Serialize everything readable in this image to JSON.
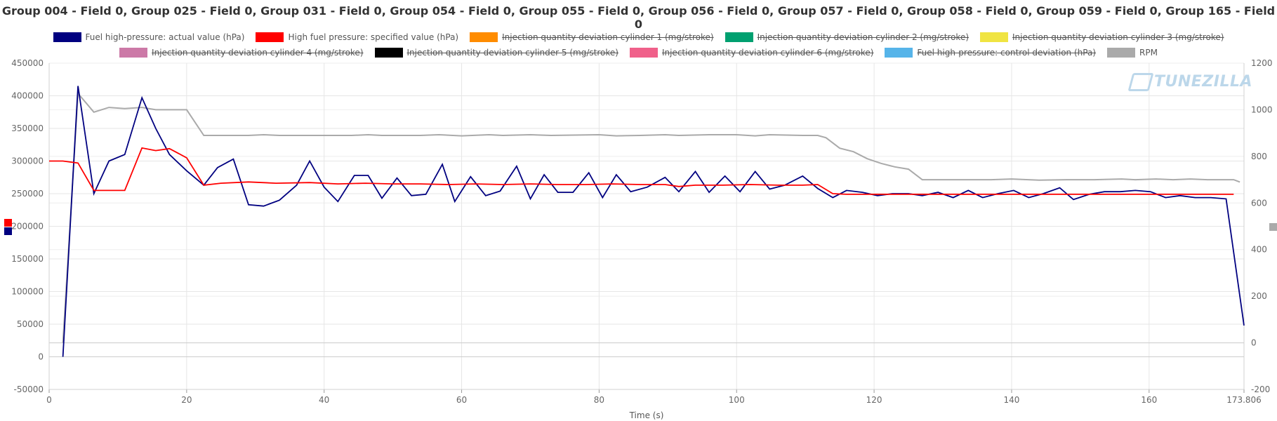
{
  "chart_data": {
    "type": "line",
    "title": "Group 004 - Field 0, Group 025 - Field 0, Group 031 - Field 0, Group 054 - Field 0, Group 055 - Field 0, Group 056 - Field 0, Group 057 - Field 0, Group 058 - Field 0, Group 059 - Field 0, Group 165 - Field 0",
    "xlabel": "Time (s)",
    "xlim": [
      0,
      173.806
    ],
    "x_ticks": [
      "0",
      "20",
      "40",
      "60",
      "80",
      "100",
      "120",
      "140",
      "160",
      "173.806"
    ],
    "y_left_lim": [
      -50000,
      450000
    ],
    "y_left_ticks": [
      "450000",
      "400000",
      "350000",
      "300000",
      "250000",
      "200000",
      "150000",
      "100000",
      "50000",
      "0",
      "-50000"
    ],
    "y_right_lim": [
      -200,
      1200
    ],
    "y_right_ticks": [
      "1200",
      "1000",
      "800",
      "600",
      "400",
      "200",
      "0",
      "-200"
    ],
    "grid": true,
    "legend_position": "top",
    "series": [
      {
        "name": "Fuel high-pressure: actual value (hPa)",
        "color": "#000080",
        "visible": true,
        "axis": "left",
        "points": [
          [
            2,
            0
          ],
          [
            4.2,
            415000
          ],
          [
            6.5,
            250000
          ],
          [
            8.7,
            300000
          ],
          [
            11,
            310000
          ],
          [
            13.5,
            397000
          ],
          [
            15.5,
            350000
          ],
          [
            17.5,
            310000
          ],
          [
            20,
            285000
          ],
          [
            22.5,
            263000
          ],
          [
            24.5,
            290000
          ],
          [
            26.8,
            303000
          ],
          [
            29,
            233000
          ],
          [
            31.2,
            231000
          ],
          [
            33.5,
            240000
          ],
          [
            36,
            263000
          ],
          [
            37.9,
            300000
          ],
          [
            40,
            260000
          ],
          [
            42,
            238000
          ],
          [
            44.4,
            278000
          ],
          [
            46.4,
            278000
          ],
          [
            48.4,
            243000
          ],
          [
            50.6,
            274000
          ],
          [
            52.7,
            247000
          ],
          [
            54.8,
            249000
          ],
          [
            57.2,
            295000
          ],
          [
            59,
            238000
          ],
          [
            61.3,
            276000
          ],
          [
            63.5,
            247000
          ],
          [
            65.6,
            254000
          ],
          [
            68,
            292000
          ],
          [
            70,
            242000
          ],
          [
            72,
            279000
          ],
          [
            74,
            252000
          ],
          [
            76.2,
            252000
          ],
          [
            78.5,
            282000
          ],
          [
            80.5,
            244000
          ],
          [
            82.5,
            279000
          ],
          [
            84.6,
            253000
          ],
          [
            87,
            260000
          ],
          [
            89.6,
            275000
          ],
          [
            91.6,
            253000
          ],
          [
            94,
            284000
          ],
          [
            96,
            252000
          ],
          [
            98.3,
            277000
          ],
          [
            100.5,
            253000
          ],
          [
            102.7,
            284000
          ],
          [
            104.8,
            257000
          ],
          [
            107,
            263000
          ],
          [
            109.6,
            277000
          ],
          [
            111.8,
            258000
          ],
          [
            114,
            244000
          ],
          [
            116,
            255000
          ],
          [
            118.3,
            252000
          ],
          [
            120.5,
            247000
          ],
          [
            122.7,
            250000
          ],
          [
            125,
            250000
          ],
          [
            127,
            247000
          ],
          [
            129.3,
            252000
          ],
          [
            131.5,
            244000
          ],
          [
            133.7,
            255000
          ],
          [
            135.8,
            244000
          ],
          [
            138,
            250000
          ],
          [
            140.3,
            255000
          ],
          [
            142.5,
            244000
          ],
          [
            144.6,
            250000
          ],
          [
            147,
            259000
          ],
          [
            149,
            241000
          ],
          [
            151.3,
            249000
          ],
          [
            153.5,
            253000
          ],
          [
            155.8,
            253000
          ],
          [
            158,
            255000
          ],
          [
            160.2,
            253000
          ],
          [
            162.4,
            244000
          ],
          [
            164.5,
            247000
          ],
          [
            166.7,
            244000
          ],
          [
            169,
            244000
          ],
          [
            171.2,
            242000
          ],
          [
            173.806,
            48000
          ]
        ]
      },
      {
        "name": "High fuel pressure: specified value (hPa)",
        "color": "#ff0000",
        "visible": true,
        "axis": "left",
        "points": [
          [
            0,
            300000
          ],
          [
            2,
            300000
          ],
          [
            4.2,
            297000
          ],
          [
            6.5,
            255000
          ],
          [
            8.7,
            255000
          ],
          [
            11,
            255000
          ],
          [
            13.5,
            320000
          ],
          [
            15.5,
            316000
          ],
          [
            17.5,
            319000
          ],
          [
            20,
            305000
          ],
          [
            22.5,
            263000
          ],
          [
            25,
            266000
          ],
          [
            29,
            268000
          ],
          [
            33,
            266000
          ],
          [
            37.9,
            267000
          ],
          [
            42,
            265000
          ],
          [
            46,
            266000
          ],
          [
            50,
            265000
          ],
          [
            54,
            265000
          ],
          [
            58,
            264000
          ],
          [
            62,
            265000
          ],
          [
            66,
            264000
          ],
          [
            70,
            265000
          ],
          [
            74,
            264000
          ],
          [
            78,
            264000
          ],
          [
            82,
            265000
          ],
          [
            86,
            264000
          ],
          [
            89.6,
            264000
          ],
          [
            91.6,
            261000
          ],
          [
            94,
            263000
          ],
          [
            98,
            263000
          ],
          [
            102,
            264000
          ],
          [
            106,
            263000
          ],
          [
            109.6,
            263000
          ],
          [
            111.8,
            264000
          ],
          [
            114,
            250000
          ],
          [
            116,
            249000
          ],
          [
            120,
            249000
          ],
          [
            125,
            249000
          ],
          [
            130,
            249000
          ],
          [
            135,
            249000
          ],
          [
            140,
            249000
          ],
          [
            145,
            249000
          ],
          [
            150,
            249000
          ],
          [
            155,
            249000
          ],
          [
            160,
            249000
          ],
          [
            165,
            249000
          ],
          [
            170,
            249000
          ],
          [
            172.3,
            249000
          ]
        ]
      },
      {
        "name": "Injection quantity deviation cylinder 1 (mg/stroke)",
        "color": "#ff8c00",
        "visible": false,
        "axis": "left",
        "points": []
      },
      {
        "name": "Injection quantity deviation cylinder 2 (mg/stroke)",
        "color": "#00a070",
        "visible": false,
        "axis": "left",
        "points": []
      },
      {
        "name": "Injection quantity deviation cylinder 3 (mg/stroke)",
        "color": "#f0e442",
        "visible": false,
        "axis": "left",
        "points": []
      },
      {
        "name": "Injection quantity deviation cylinder 4 (mg/stroke)",
        "color": "#cc79a7",
        "visible": false,
        "axis": "left",
        "points": []
      },
      {
        "name": "Injection quantity deviation cylinder 5 (mg/stroke)",
        "color": "#000000",
        "visible": false,
        "axis": "left",
        "points": []
      },
      {
        "name": "Injection quantity deviation cylinder 6 (mg/stroke)",
        "color": "#f0608a",
        "visible": false,
        "axis": "left",
        "points": []
      },
      {
        "name": "Fuel high-pressure: control deviation (hPa)",
        "color": "#56b4e9",
        "visible": false,
        "axis": "left",
        "points": []
      },
      {
        "name": "RPM",
        "color": "#aaaaaa",
        "visible": true,
        "axis": "right",
        "points": [
          [
            2,
            0
          ],
          [
            4.2,
            1070
          ],
          [
            6.5,
            990
          ],
          [
            8.7,
            1010
          ],
          [
            11,
            1005
          ],
          [
            13.5,
            1010
          ],
          [
            15.5,
            1000
          ],
          [
            17.5,
            1000
          ],
          [
            20,
            1000
          ],
          [
            22.5,
            890
          ],
          [
            25,
            890
          ],
          [
            29,
            890
          ],
          [
            31.2,
            893
          ],
          [
            33.5,
            890
          ],
          [
            38,
            890
          ],
          [
            44,
            890
          ],
          [
            46.4,
            893
          ],
          [
            48.4,
            890
          ],
          [
            54,
            890
          ],
          [
            56.7,
            893
          ],
          [
            60,
            888
          ],
          [
            64,
            893
          ],
          [
            66,
            890
          ],
          [
            70,
            893
          ],
          [
            73,
            890
          ],
          [
            80,
            893
          ],
          [
            82.5,
            888
          ],
          [
            86,
            890
          ],
          [
            89.6,
            893
          ],
          [
            91.6,
            890
          ],
          [
            96,
            893
          ],
          [
            100,
            893
          ],
          [
            102.7,
            888
          ],
          [
            104.8,
            893
          ],
          [
            109.6,
            890
          ],
          [
            111.8,
            890
          ],
          [
            113,
            880
          ],
          [
            115,
            835
          ],
          [
            117,
            820
          ],
          [
            119,
            790
          ],
          [
            121,
            770
          ],
          [
            123,
            755
          ],
          [
            125,
            745
          ],
          [
            127,
            700
          ],
          [
            131,
            700
          ],
          [
            137,
            700
          ],
          [
            140,
            703
          ],
          [
            144,
            698
          ],
          [
            148,
            700
          ],
          [
            152,
            700
          ],
          [
            156,
            703
          ],
          [
            158,
            700
          ],
          [
            161,
            703
          ],
          [
            163.5,
            700
          ],
          [
            166,
            703
          ],
          [
            168.5,
            700
          ],
          [
            172.3,
            700
          ],
          [
            173.2,
            690
          ]
        ]
      }
    ]
  }
}
